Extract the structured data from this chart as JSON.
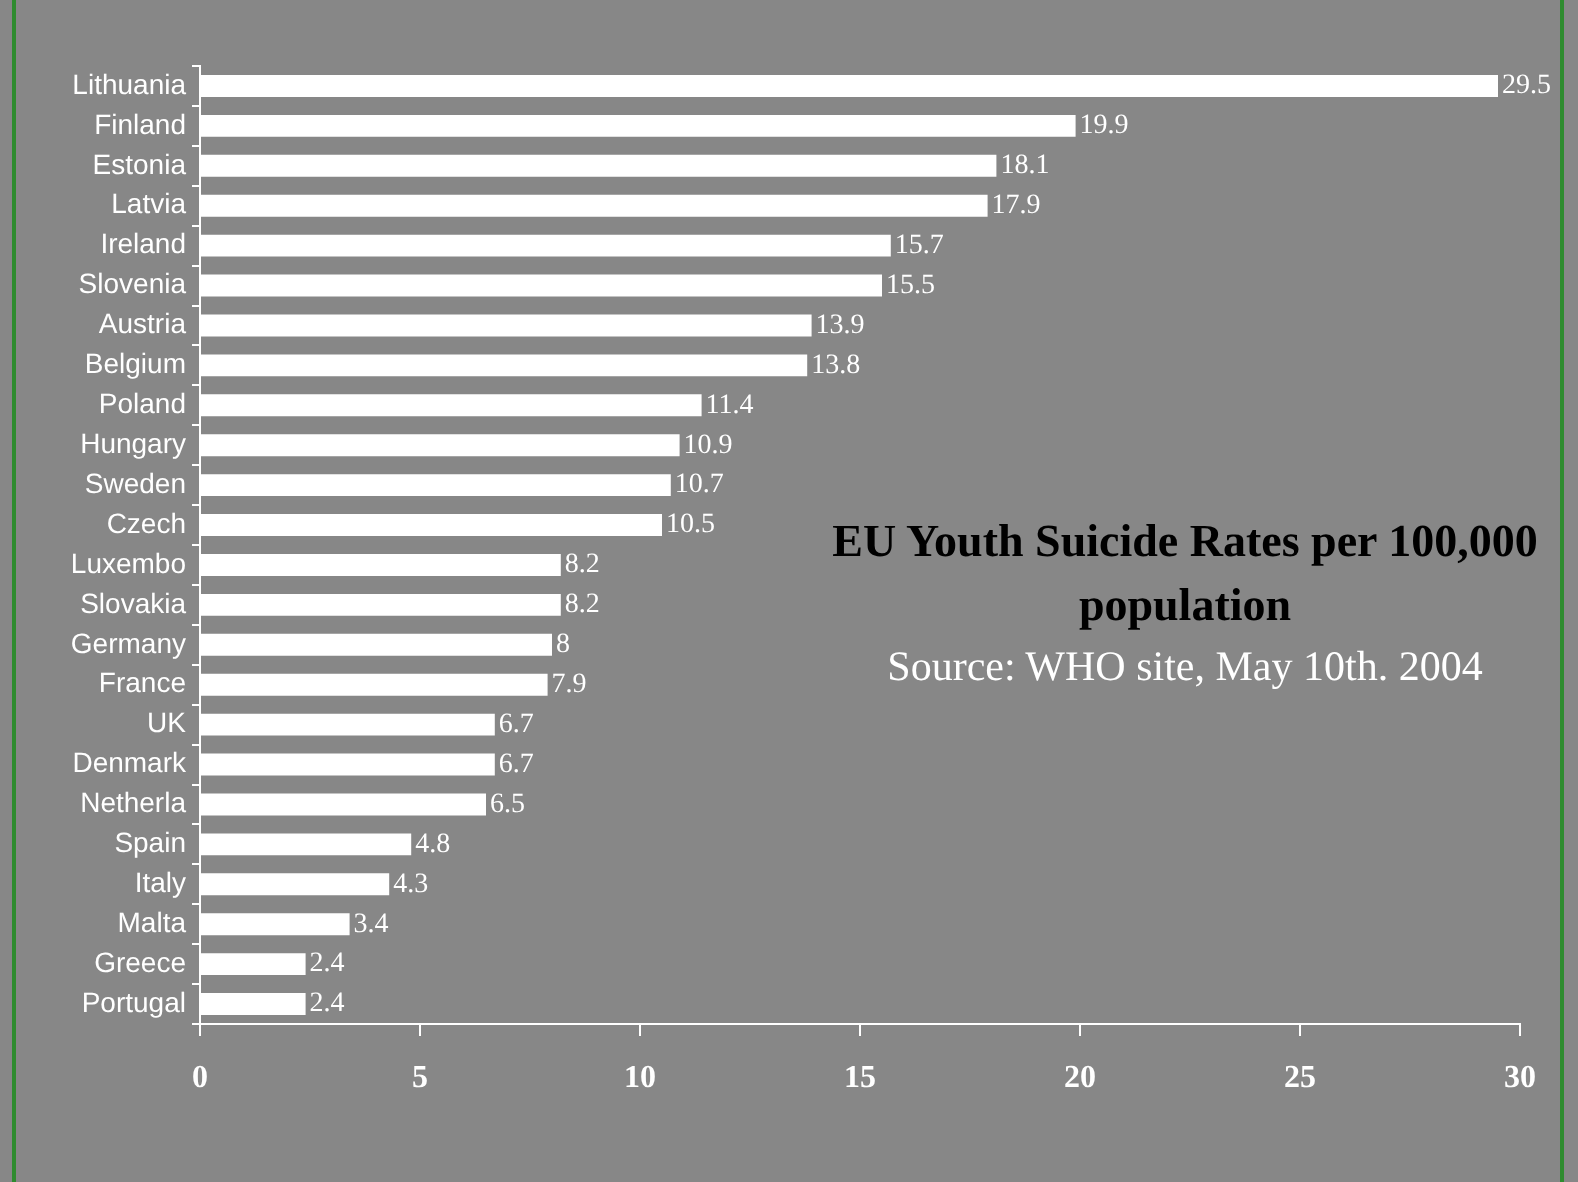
{
  "chart_data": {
    "type": "bar",
    "orientation": "horizontal",
    "title": "EU Youth Suicide Rates per 100,000 population",
    "annotations": [
      "Source: WHO site, May 10th. 2004"
    ],
    "categories": [
      "Lithuania",
      "Finland",
      "Estonia",
      "Latvia",
      "Ireland",
      "Slovenia",
      "Austria",
      "Belgium",
      "Poland",
      "Hungary",
      "Sweden",
      "Czech",
      "Luxembo",
      "Slovakia",
      "Germany",
      "France",
      "UK",
      "Denmark",
      "Netherla",
      "Spain",
      "Italy",
      "Malta",
      "Greece",
      "Portugal"
    ],
    "values": [
      29.5,
      19.9,
      18.1,
      17.9,
      15.7,
      15.5,
      13.9,
      13.8,
      11.4,
      10.9,
      10.7,
      10.5,
      8.2,
      8.2,
      8,
      7.9,
      6.7,
      6.7,
      6.5,
      4.8,
      4.3,
      3.4,
      2.4,
      2.4
    ],
    "color": "#ffffff",
    "xlim": [
      0,
      30
    ],
    "xticks": [
      0,
      5,
      10,
      15,
      20,
      25,
      30
    ],
    "data_labels": true
  }
}
